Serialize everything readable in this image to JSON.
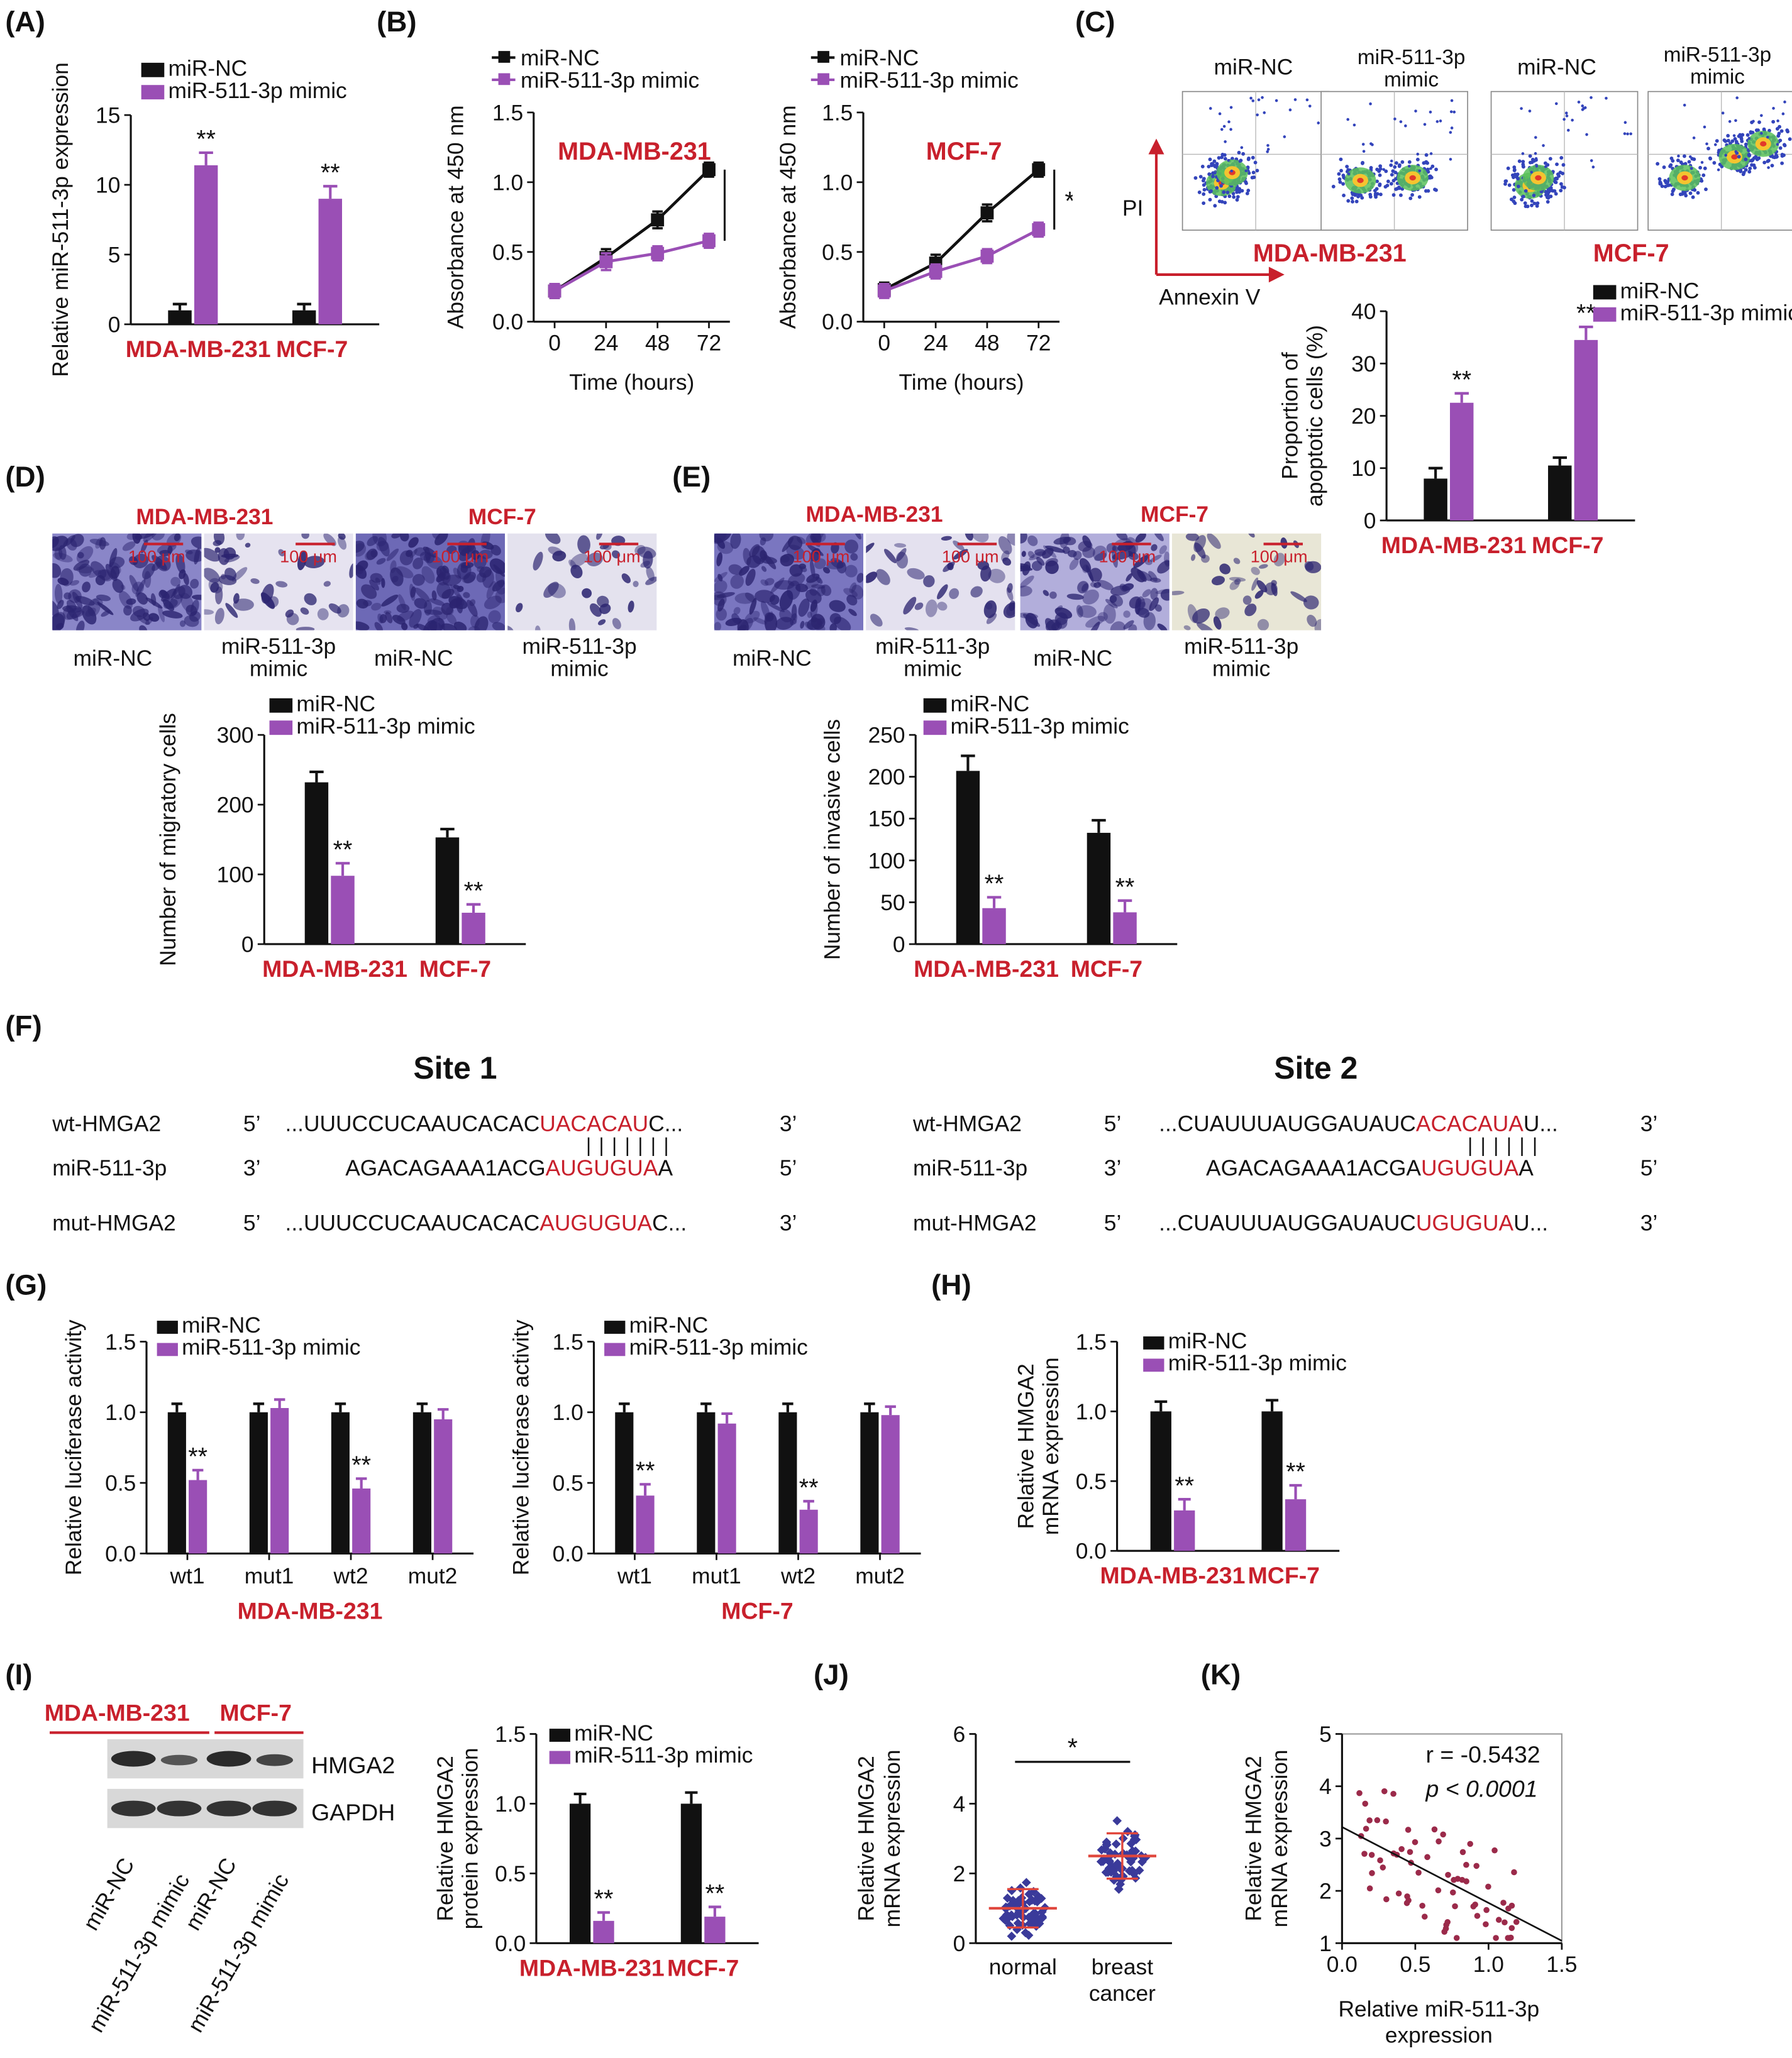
{
  "panel_labels": {
    "A": "(A)",
    "B": "(B)",
    "C": "(C)",
    "D": "(D)",
    "E": "(E)",
    "F": "(F)",
    "G": "(G)",
    "H": "(H)",
    "I": "(I)",
    "J": "(J)",
    "K": "(K)"
  },
  "colors": {
    "nc": "#111111",
    "mimic": "#9a4fb5",
    "red": "#c8202c"
  },
  "legend": {
    "nc": "miR-NC",
    "mimic": "miR-511-3p mimic",
    "mimic_short": "miR-511-3p",
    "mimic_word": "mimic"
  },
  "cells": {
    "mda": "MDA-MB-231",
    "mcf": "MCF-7"
  },
  "panelC": {
    "pi": "PI",
    "annexin": "Annexin V",
    "flow_labels": [
      "miR-NC",
      "miR-511-3p mimic",
      "miR-NC",
      "miR-511-3p mimic"
    ]
  },
  "micro_labels": {
    "scale": "100 μm"
  },
  "panelF": {
    "site1": "Site 1",
    "site2": "Site 2",
    "rows": [
      "wt-HMGA2",
      "miR-511-3p",
      "mut-HMGA2"
    ],
    "p5": "5’",
    "p3": "3’",
    "s1": {
      "wt_a": "...UUUCCUCAAUCACAC",
      "wt_b": "UACACAU",
      "wt_c": "C...",
      "mir_a": "AGACAGAAA1ACG",
      "mir_b": "AUGUGUA",
      "mir_c": "A",
      "mut_a": "...UUUCCUCAAUCACAC",
      "mut_b": "AUGUGUA",
      "mut_c": "C..."
    },
    "s2": {
      "wt_a": "...CUAUUUAUGGAUAUC",
      "wt_b": "ACACAUA",
      "wt_c": "U...",
      "mir_a": "AGACAGAAA1ACGA",
      "mir_b": "UGUGUA",
      "mir_c": "A",
      "mut_a": "...CUAUUUAUGGAUAUC",
      "mut_b": "UGUGUA",
      "mut_c": "U..."
    }
  },
  "panelI": {
    "hmga2": "HMGA2",
    "gapdh": "GAPDH",
    "lanes": [
      "miR-NC",
      "miR-511-3p mimic",
      "miR-NC",
      "miR-511-3p mimic"
    ]
  },
  "chart_data": [
    {
      "id": "A",
      "type": "bar",
      "title": "",
      "ylabel": "Relative miR-511-3p expression",
      "ylim": [
        0,
        15
      ],
      "yticks": [
        0,
        5,
        10,
        15
      ],
      "categories": [
        "MDA-MB-231",
        "MCF-7"
      ],
      "series": [
        {
          "name": "miR-NC",
          "values": [
            1.0,
            1.0
          ],
          "err": [
            0.45,
            0.45
          ]
        },
        {
          "name": "miR-511-3p mimic",
          "values": [
            11.4,
            9.0
          ],
          "err": [
            0.9,
            0.9
          ]
        }
      ],
      "annotations": [
        {
          "category": "MDA-MB-231",
          "series": "miR-511-3p mimic",
          "text": "**"
        },
        {
          "category": "MCF-7",
          "series": "miR-511-3p mimic",
          "text": "**"
        }
      ]
    },
    {
      "id": "B1",
      "type": "line",
      "title": "MDA-MB-231",
      "xlabel": "Time (hours)",
      "ylabel": "Absorbance at 450 nm",
      "ylim": [
        0,
        1.5
      ],
      "yticks": [
        "0.0",
        "0.5",
        "1.0",
        "1.5"
      ],
      "x": [
        0,
        24,
        48,
        72
      ],
      "series": [
        {
          "name": "miR-NC",
          "values": [
            0.22,
            0.46,
            0.73,
            1.09
          ],
          "err": [
            0.05,
            0.06,
            0.06,
            0.05
          ]
        },
        {
          "name": "miR-511-3p mimic",
          "values": [
            0.22,
            0.43,
            0.49,
            0.58
          ],
          "err": [
            0.05,
            0.06,
            0.05,
            0.05
          ]
        }
      ],
      "annotation": "*"
    },
    {
      "id": "B2",
      "type": "line",
      "title": "MCF-7",
      "xlabel": "Time (hours)",
      "ylabel": "Absorbance at 450 nm",
      "ylim": [
        0,
        1.5
      ],
      "yticks": [
        "0.0",
        "0.5",
        "1.0",
        "1.5"
      ],
      "x": [
        0,
        24,
        48,
        72
      ],
      "series": [
        {
          "name": "miR-NC",
          "values": [
            0.23,
            0.42,
            0.78,
            1.09
          ],
          "err": [
            0.05,
            0.06,
            0.06,
            0.05
          ]
        },
        {
          "name": "miR-511-3p mimic",
          "values": [
            0.22,
            0.36,
            0.47,
            0.66
          ],
          "err": [
            0.05,
            0.05,
            0.05,
            0.05
          ]
        }
      ],
      "annotation": "*"
    },
    {
      "id": "C",
      "type": "bar",
      "ylabel": "Proportion of apoptotic cells (%)",
      "ylim": [
        0,
        40
      ],
      "yticks": [
        0,
        10,
        20,
        30,
        40
      ],
      "categories": [
        "MDA-MB-231",
        "MCF-7"
      ],
      "series": [
        {
          "name": "miR-NC",
          "values": [
            8,
            10.5
          ],
          "err": [
            2,
            1.5
          ]
        },
        {
          "name": "miR-511-3p mimic",
          "values": [
            22.5,
            34.5
          ],
          "err": [
            1.8,
            2.5
          ]
        }
      ],
      "annotations": [
        {
          "category": "MDA-MB-231",
          "series": "miR-511-3p mimic",
          "text": "**"
        },
        {
          "category": "MCF-7",
          "series": "miR-511-3p mimic",
          "text": "**"
        }
      ]
    },
    {
      "id": "D",
      "type": "bar",
      "ylabel": "Number of migratory cells",
      "ylim": [
        0,
        300
      ],
      "yticks": [
        0,
        100,
        200,
        300
      ],
      "categories": [
        "MDA-MB-231",
        "MCF-7"
      ],
      "series": [
        {
          "name": "miR-NC",
          "values": [
            232,
            153
          ],
          "err": [
            15,
            12
          ]
        },
        {
          "name": "miR-511-3p mimic",
          "values": [
            98,
            45
          ],
          "err": [
            18,
            12
          ]
        }
      ],
      "annotations": [
        {
          "category": "MDA-MB-231",
          "series": "miR-511-3p mimic",
          "text": "**"
        },
        {
          "category": "MCF-7",
          "series": "miR-511-3p mimic",
          "text": "**"
        }
      ]
    },
    {
      "id": "E",
      "type": "bar",
      "ylabel": "Number of invasive cells",
      "ylim": [
        0,
        250
      ],
      "yticks": [
        0,
        50,
        100,
        150,
        200,
        250
      ],
      "categories": [
        "MDA-MB-231",
        "MCF-7"
      ],
      "series": [
        {
          "name": "miR-NC",
          "values": [
            207,
            133
          ],
          "err": [
            18,
            15
          ]
        },
        {
          "name": "miR-511-3p mimic",
          "values": [
            43,
            38
          ],
          "err": [
            13,
            14
          ]
        }
      ],
      "annotations": [
        {
          "category": "MDA-MB-231",
          "series": "miR-511-3p mimic",
          "text": "**"
        },
        {
          "category": "MCF-7",
          "series": "miR-511-3p mimic",
          "text": "**"
        }
      ]
    },
    {
      "id": "G1",
      "type": "bar",
      "ylabel": "Relative luciferase activity",
      "xlabel": "MDA-MB-231",
      "ylim": [
        0,
        1.5
      ],
      "yticks": [
        "0.0",
        "0.5",
        "1.0",
        "1.5"
      ],
      "categories": [
        "wt1",
        "mut1",
        "wt2",
        "mut2"
      ],
      "series": [
        {
          "name": "miR-NC",
          "values": [
            1.0,
            1.0,
            1.0,
            1.0
          ],
          "err": [
            0.06,
            0.06,
            0.06,
            0.06
          ]
        },
        {
          "name": "miR-511-3p mimic",
          "values": [
            0.52,
            1.03,
            0.46,
            0.95
          ],
          "err": [
            0.07,
            0.06,
            0.07,
            0.07
          ]
        }
      ],
      "annotations": [
        {
          "category": "wt1",
          "series": "miR-511-3p mimic",
          "text": "**"
        },
        {
          "category": "wt2",
          "series": "miR-511-3p mimic",
          "text": "**"
        }
      ]
    },
    {
      "id": "G2",
      "type": "bar",
      "ylabel": "Relative luciferase activity",
      "xlabel": "MCF-7",
      "ylim": [
        0,
        1.5
      ],
      "yticks": [
        "0.0",
        "0.5",
        "1.0",
        "1.5"
      ],
      "categories": [
        "wt1",
        "mut1",
        "wt2",
        "mut2"
      ],
      "series": [
        {
          "name": "miR-NC",
          "values": [
            1.0,
            1.0,
            1.0,
            1.0
          ],
          "err": [
            0.06,
            0.06,
            0.06,
            0.06
          ]
        },
        {
          "name": "miR-511-3p mimic",
          "values": [
            0.41,
            0.92,
            0.31,
            0.98
          ],
          "err": [
            0.08,
            0.07,
            0.06,
            0.06
          ]
        }
      ],
      "annotations": [
        {
          "category": "wt1",
          "series": "miR-511-3p mimic",
          "text": "**"
        },
        {
          "category": "wt2",
          "series": "miR-511-3p mimic",
          "text": "**"
        }
      ]
    },
    {
      "id": "H",
      "type": "bar",
      "ylabel": "Relative HMGA2 mRNA expression",
      "ylim": [
        0,
        1.5
      ],
      "yticks": [
        "0.0",
        "0.5",
        "1.0",
        "1.5"
      ],
      "categories": [
        "MDA-MB-231",
        "MCF-7"
      ],
      "series": [
        {
          "name": "miR-NC",
          "values": [
            1.0,
            1.0
          ],
          "err": [
            0.07,
            0.08
          ]
        },
        {
          "name": "miR-511-3p mimic",
          "values": [
            0.29,
            0.37
          ],
          "err": [
            0.08,
            0.1
          ]
        }
      ],
      "annotations": [
        {
          "category": "MDA-MB-231",
          "series": "miR-511-3p mimic",
          "text": "**"
        },
        {
          "category": "MCF-7",
          "series": "miR-511-3p mimic",
          "text": "**"
        }
      ]
    },
    {
      "id": "I",
      "type": "bar",
      "ylabel": "Relative HMGA2 protein expression",
      "ylim": [
        0,
        1.5
      ],
      "yticks": [
        "0.0",
        "0.5",
        "1.0",
        "1.5"
      ],
      "categories": [
        "MDA-MB-231",
        "MCF-7"
      ],
      "series": [
        {
          "name": "miR-NC",
          "values": [
            1.0,
            1.0
          ],
          "err": [
            0.07,
            0.08
          ]
        },
        {
          "name": "miR-511-3p mimic",
          "values": [
            0.16,
            0.19
          ],
          "err": [
            0.06,
            0.07
          ]
        }
      ],
      "annotations": [
        {
          "category": "MDA-MB-231",
          "series": "miR-511-3p mimic",
          "text": "**"
        },
        {
          "category": "MCF-7",
          "series": "miR-511-3p mimic",
          "text": "**"
        }
      ]
    },
    {
      "id": "J",
      "type": "scatter",
      "ylabel": "Relative HMGA2 mRNA expression",
      "ylim": [
        0,
        6
      ],
      "yticks": [
        0,
        2,
        4,
        6
      ],
      "categories": [
        "normal",
        "breast cancer"
      ],
      "groups": [
        {
          "name": "normal",
          "mean": 1.0,
          "sd": 0.55
        },
        {
          "name": "breast cancer",
          "mean": 2.5,
          "sd": 0.65
        }
      ],
      "annotation": "*"
    },
    {
      "id": "K",
      "type": "scatter",
      "xlabel": "Relative miR-511-3p expression",
      "ylabel": "Relative HMGA2 mRNA expression",
      "xlim": [
        0,
        1.5
      ],
      "ylim": [
        1,
        5
      ],
      "xticks": [
        "0.0",
        "0.5",
        "1.0",
        "1.5"
      ],
      "yticks": [
        "1",
        "2",
        "3",
        "4",
        "5"
      ],
      "r_text": "r = -0.5432",
      "p_text": "p < 0.0001",
      "fit": {
        "slope": -1.45,
        "intercept": 3.22
      }
    }
  ]
}
